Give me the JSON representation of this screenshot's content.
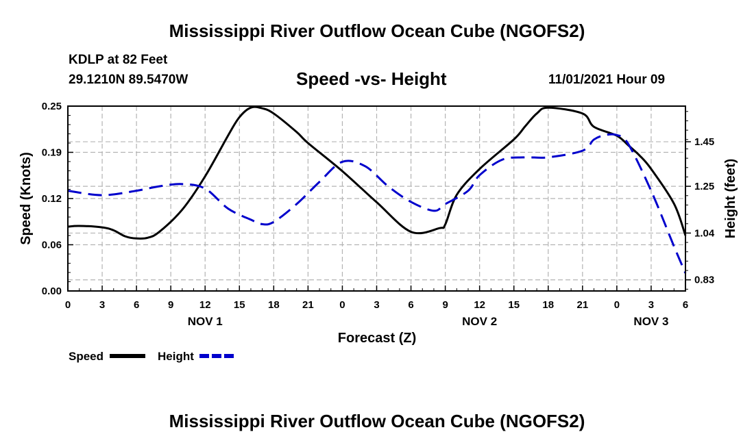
{
  "header": {
    "title": "Mississippi River Outflow Ocean Cube (NGOFS2)",
    "station": "KDLP at 82 Feet",
    "coords": "29.1210N  89.5470W",
    "subtitle": "Speed -vs- Height",
    "timestamp": "11/01/2021 Hour 09"
  },
  "footer": {
    "title": "Mississippi River Outflow Ocean Cube (NGOFS2)"
  },
  "colors": {
    "speed": "#000000",
    "height": "#0000cc",
    "grid": "#b3b3b3"
  },
  "chart_data": {
    "type": "line",
    "title": "Speed -vs- Height",
    "xlabel": "Forecast (Z)",
    "ylabel": "Speed (Knots)",
    "y2label": "Height (feet)",
    "x_unit": "hours since 00Z Nov 1",
    "xlim": [
      0,
      54
    ],
    "ylim": [
      0,
      0.25
    ],
    "y2lim": [
      0.78,
      1.61
    ],
    "x_ticks": [
      0,
      3,
      6,
      9,
      12,
      15,
      18,
      21,
      24,
      27,
      30,
      33,
      36,
      39,
      42,
      45,
      48,
      51,
      54
    ],
    "x_tick_labels": [
      "0",
      "3",
      "6",
      "9",
      "12",
      "15",
      "18",
      "21",
      "0",
      "3",
      "6",
      "9",
      "12",
      "15",
      "18",
      "21",
      "0",
      "3",
      "6"
    ],
    "day_labels": [
      {
        "x": 12,
        "label": "NOV 1"
      },
      {
        "x": 36,
        "label": "NOV 2"
      },
      {
        "x": 51,
        "label": "NOV 3"
      }
    ],
    "y_ticks": [
      0.0,
      0.0625,
      0.125,
      0.1875,
      0.25
    ],
    "y_tick_labels": [
      "0.00",
      "0.06",
      "0.12",
      "0.19",
      "0.25"
    ],
    "y2_ticks": [
      0.83,
      1.04,
      1.25,
      1.45
    ],
    "y2_tick_labels": [
      "0.83",
      "1.04",
      "1.25",
      "1.45"
    ],
    "grid": true,
    "legend": [
      {
        "name": "Speed",
        "style": "solid"
      },
      {
        "name": "Height",
        "style": "dashed"
      }
    ],
    "series": [
      {
        "name": "Speed",
        "axis": "left",
        "style": "solid",
        "x": [
          0,
          1,
          3,
          4,
          5,
          6,
          7,
          8,
          10,
          12,
          14,
          15,
          16,
          17,
          18,
          20,
          21,
          24,
          27,
          30,
          32.5,
          33,
          34,
          36,
          39,
          40,
          41,
          42,
          45,
          46,
          48,
          49,
          50,
          51,
          53,
          54
        ],
        "y": [
          0.087,
          0.088,
          0.086,
          0.082,
          0.074,
          0.071,
          0.072,
          0.08,
          0.11,
          0.155,
          0.21,
          0.235,
          0.248,
          0.247,
          0.24,
          0.215,
          0.2,
          0.162,
          0.12,
          0.08,
          0.085,
          0.09,
          0.13,
          0.165,
          0.205,
          0.223,
          0.24,
          0.248,
          0.24,
          0.222,
          0.21,
          0.197,
          0.183,
          0.165,
          0.118,
          0.075
        ]
      },
      {
        "name": "Height",
        "axis": "right",
        "style": "dashed",
        "x": [
          0,
          3,
          6,
          8,
          10,
          12,
          14,
          16,
          17,
          18,
          20,
          22,
          24,
          26,
          28,
          30,
          32,
          33,
          35,
          36,
          38,
          40,
          42,
          45,
          46,
          47,
          48,
          49,
          51,
          53,
          54
        ],
        "y": [
          1.23,
          1.21,
          1.23,
          1.25,
          1.26,
          1.24,
          1.15,
          1.1,
          1.08,
          1.09,
          1.17,
          1.27,
          1.36,
          1.34,
          1.25,
          1.18,
          1.14,
          1.17,
          1.23,
          1.3,
          1.37,
          1.38,
          1.38,
          1.41,
          1.46,
          1.48,
          1.48,
          1.44,
          1.23,
          0.98,
          0.86
        ]
      }
    ]
  }
}
